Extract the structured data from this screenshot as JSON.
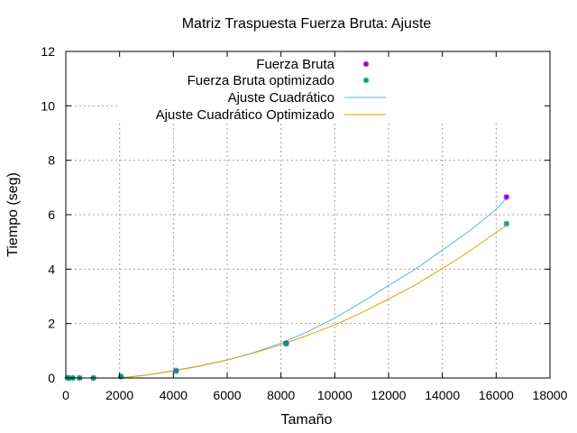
{
  "chart_data": {
    "type": "scatter",
    "title": "Matriz Traspuesta Fuerza Bruta: Ajuste",
    "xlabel": "Tamaño",
    "ylabel": "Tiempo (seg)",
    "xlim": [
      0,
      18000
    ],
    "ylim": [
      0,
      12
    ],
    "xticks": [
      0,
      2000,
      4000,
      6000,
      8000,
      10000,
      12000,
      14000,
      16000,
      18000
    ],
    "yticks": [
      0,
      2,
      4,
      6,
      8,
      10,
      12
    ],
    "grid": true,
    "legend_position": "top-right",
    "series": [
      {
        "name": "Fuerza Bruta",
        "kind": "points",
        "color": "#9400d3",
        "x": [
          64,
          128,
          256,
          512,
          1024,
          2048,
          4096,
          8192,
          16384
        ],
        "y": [
          0.0,
          0.0,
          0.0,
          0.0,
          0.0,
          0.05,
          0.27,
          1.28,
          6.65
        ]
      },
      {
        "name": "Fuerza Bruta optimizado",
        "kind": "points",
        "color": "#009e73",
        "x": [
          64,
          128,
          256,
          512,
          1024,
          2048,
          4096,
          8192,
          16384
        ],
        "y": [
          0.0,
          0.0,
          0.0,
          0.0,
          0.0,
          0.05,
          0.25,
          1.25,
          5.67
        ]
      },
      {
        "name": "Ajuste Cuadrático",
        "kind": "line",
        "color": "#56b4e9",
        "x": [
          2000,
          3000,
          4000,
          5000,
          6000,
          7000,
          8000,
          9000,
          10000,
          11000,
          12000,
          13000,
          14000,
          15000,
          16000,
          16400
        ],
        "y": [
          0.0,
          0.11,
          0.27,
          0.45,
          0.66,
          0.93,
          1.28,
          1.7,
          2.2,
          2.78,
          3.4,
          4.0,
          4.7,
          5.4,
          6.2,
          6.62
        ]
      },
      {
        "name": "Ajuste Cuadrático Optimizado",
        "kind": "line",
        "color": "#e69f00",
        "x": [
          2000,
          3000,
          4000,
          5000,
          6000,
          7000,
          8000,
          9000,
          10000,
          11000,
          12000,
          13000,
          14000,
          15000,
          16000,
          16400
        ],
        "y": [
          0.0,
          0.11,
          0.26,
          0.44,
          0.66,
          0.92,
          1.22,
          1.57,
          1.95,
          2.4,
          2.9,
          3.42,
          4.02,
          4.65,
          5.35,
          5.62
        ]
      }
    ]
  }
}
